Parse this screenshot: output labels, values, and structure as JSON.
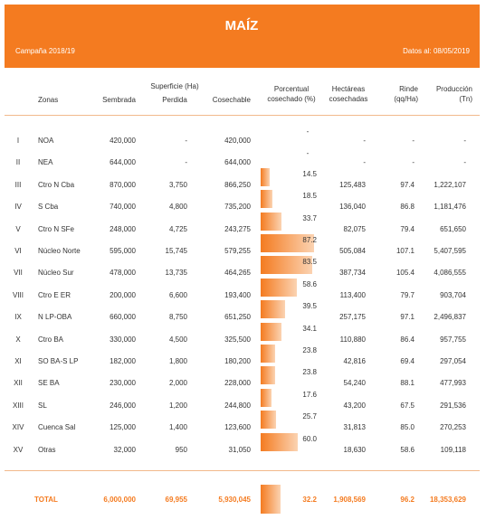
{
  "header": {
    "title": "MAÍZ",
    "campaign": "Campaña 2018/19",
    "date": "Datos al: 08/05/2019"
  },
  "table": {
    "group_header": "Superficie (Ha)",
    "columns": {
      "zonas": "Zonas",
      "sembrada": "Sembrada",
      "perdida": "Perdida",
      "cosechable": "Cosechable",
      "pct": [
        "Porcentual",
        "cosechado (%)"
      ],
      "hect": [
        "Hectáreas",
        "cosechadas"
      ],
      "rinde": [
        "Rinde",
        "(qq/Ha)"
      ],
      "prod": [
        "Producción",
        "(Tn)"
      ]
    },
    "rows": [
      {
        "id": "I",
        "zona": "NOA",
        "sembrada": "420,000",
        "perdida": "-",
        "cosechable": "420,000",
        "pct": "-",
        "hect": "-",
        "rinde": "-",
        "prod": "-"
      },
      {
        "id": "II",
        "zona": "NEA",
        "sembrada": "644,000",
        "perdida": "-",
        "cosechable": "644,000",
        "pct": "-",
        "hect": "-",
        "rinde": "-",
        "prod": "-"
      },
      {
        "id": "III",
        "zona": "Ctro N Cba",
        "sembrada": "870,000",
        "perdida": "3,750",
        "cosechable": "866,250",
        "pct": 14.5,
        "hect": "125,483",
        "rinde": "97.4",
        "prod": "1,222,107"
      },
      {
        "id": "IV",
        "zona": "S Cba",
        "sembrada": "740,000",
        "perdida": "4,800",
        "cosechable": "735,200",
        "pct": 18.5,
        "hect": "136,040",
        "rinde": "86.8",
        "prod": "1,181,476"
      },
      {
        "id": "V",
        "zona": "Ctro N SFe",
        "sembrada": "248,000",
        "perdida": "4,725",
        "cosechable": "243,275",
        "pct": 33.7,
        "hect": "82,075",
        "rinde": "79.4",
        "prod": "651,650"
      },
      {
        "id": "VI",
        "zona": "Núcleo Norte",
        "sembrada": "595,000",
        "perdida": "15,745",
        "cosechable": "579,255",
        "pct": 87.2,
        "hect": "505,084",
        "rinde": "107.1",
        "prod": "5,407,595"
      },
      {
        "id": "VII",
        "zona": "Núcleo Sur",
        "sembrada": "478,000",
        "perdida": "13,735",
        "cosechable": "464,265",
        "pct": 83.5,
        "hect": "387,734",
        "rinde": "105.4",
        "prod": "4,086,555"
      },
      {
        "id": "VIII",
        "zona": "Ctro E ER",
        "sembrada": "200,000",
        "perdida": "6,600",
        "cosechable": "193,400",
        "pct": 58.6,
        "hect": "113,400",
        "rinde": "79.7",
        "prod": "903,704"
      },
      {
        "id": "IX",
        "zona": "N LP-OBA",
        "sembrada": "660,000",
        "perdida": "8,750",
        "cosechable": "651,250",
        "pct": 39.5,
        "hect": "257,175",
        "rinde": "97.1",
        "prod": "2,496,837"
      },
      {
        "id": "X",
        "zona": "Ctro BA",
        "sembrada": "330,000",
        "perdida": "4,500",
        "cosechable": "325,500",
        "pct": 34.1,
        "hect": "110,880",
        "rinde": "86.4",
        "prod": "957,755"
      },
      {
        "id": "XI",
        "zona": "SO BA-S LP",
        "sembrada": "182,000",
        "perdida": "1,800",
        "cosechable": "180,200",
        "pct": 23.8,
        "hect": "42,816",
        "rinde": "69.4",
        "prod": "297,054"
      },
      {
        "id": "XII",
        "zona": "SE BA",
        "sembrada": "230,000",
        "perdida": "2,000",
        "cosechable": "228,000",
        "pct": 23.8,
        "hect": "54,240",
        "rinde": "88.1",
        "prod": "477,993"
      },
      {
        "id": "XIII",
        "zona": "SL",
        "sembrada": "246,000",
        "perdida": "1,200",
        "cosechable": "244,800",
        "pct": 17.6,
        "hect": "43,200",
        "rinde": "67.5",
        "prod": "291,536"
      },
      {
        "id": "XIV",
        "zona": "Cuenca Sal",
        "sembrada": "125,000",
        "perdida": "1,400",
        "cosechable": "123,600",
        "pct": 25.7,
        "hect": "31,813",
        "rinde": "85.0",
        "prod": "270,253"
      },
      {
        "id": "XV",
        "zona": "Otras",
        "sembrada": "32,000",
        "perdida": "950",
        "cosechable": "31,050",
        "pct": {
          "value": 60,
          "label": "60.0"
        },
        "hect": "18,630",
        "rinde": "58.6",
        "prod": "109,118"
      }
    ],
    "total": {
      "zona": "TOTAL",
      "sembrada": "6,000,000",
      "perdida": "69,955",
      "cosechable": "5,930,045",
      "pct": 32.2,
      "hect": "1,908,569",
      "rinde": "96.2",
      "prod": "18,353,629"
    }
  }
}
